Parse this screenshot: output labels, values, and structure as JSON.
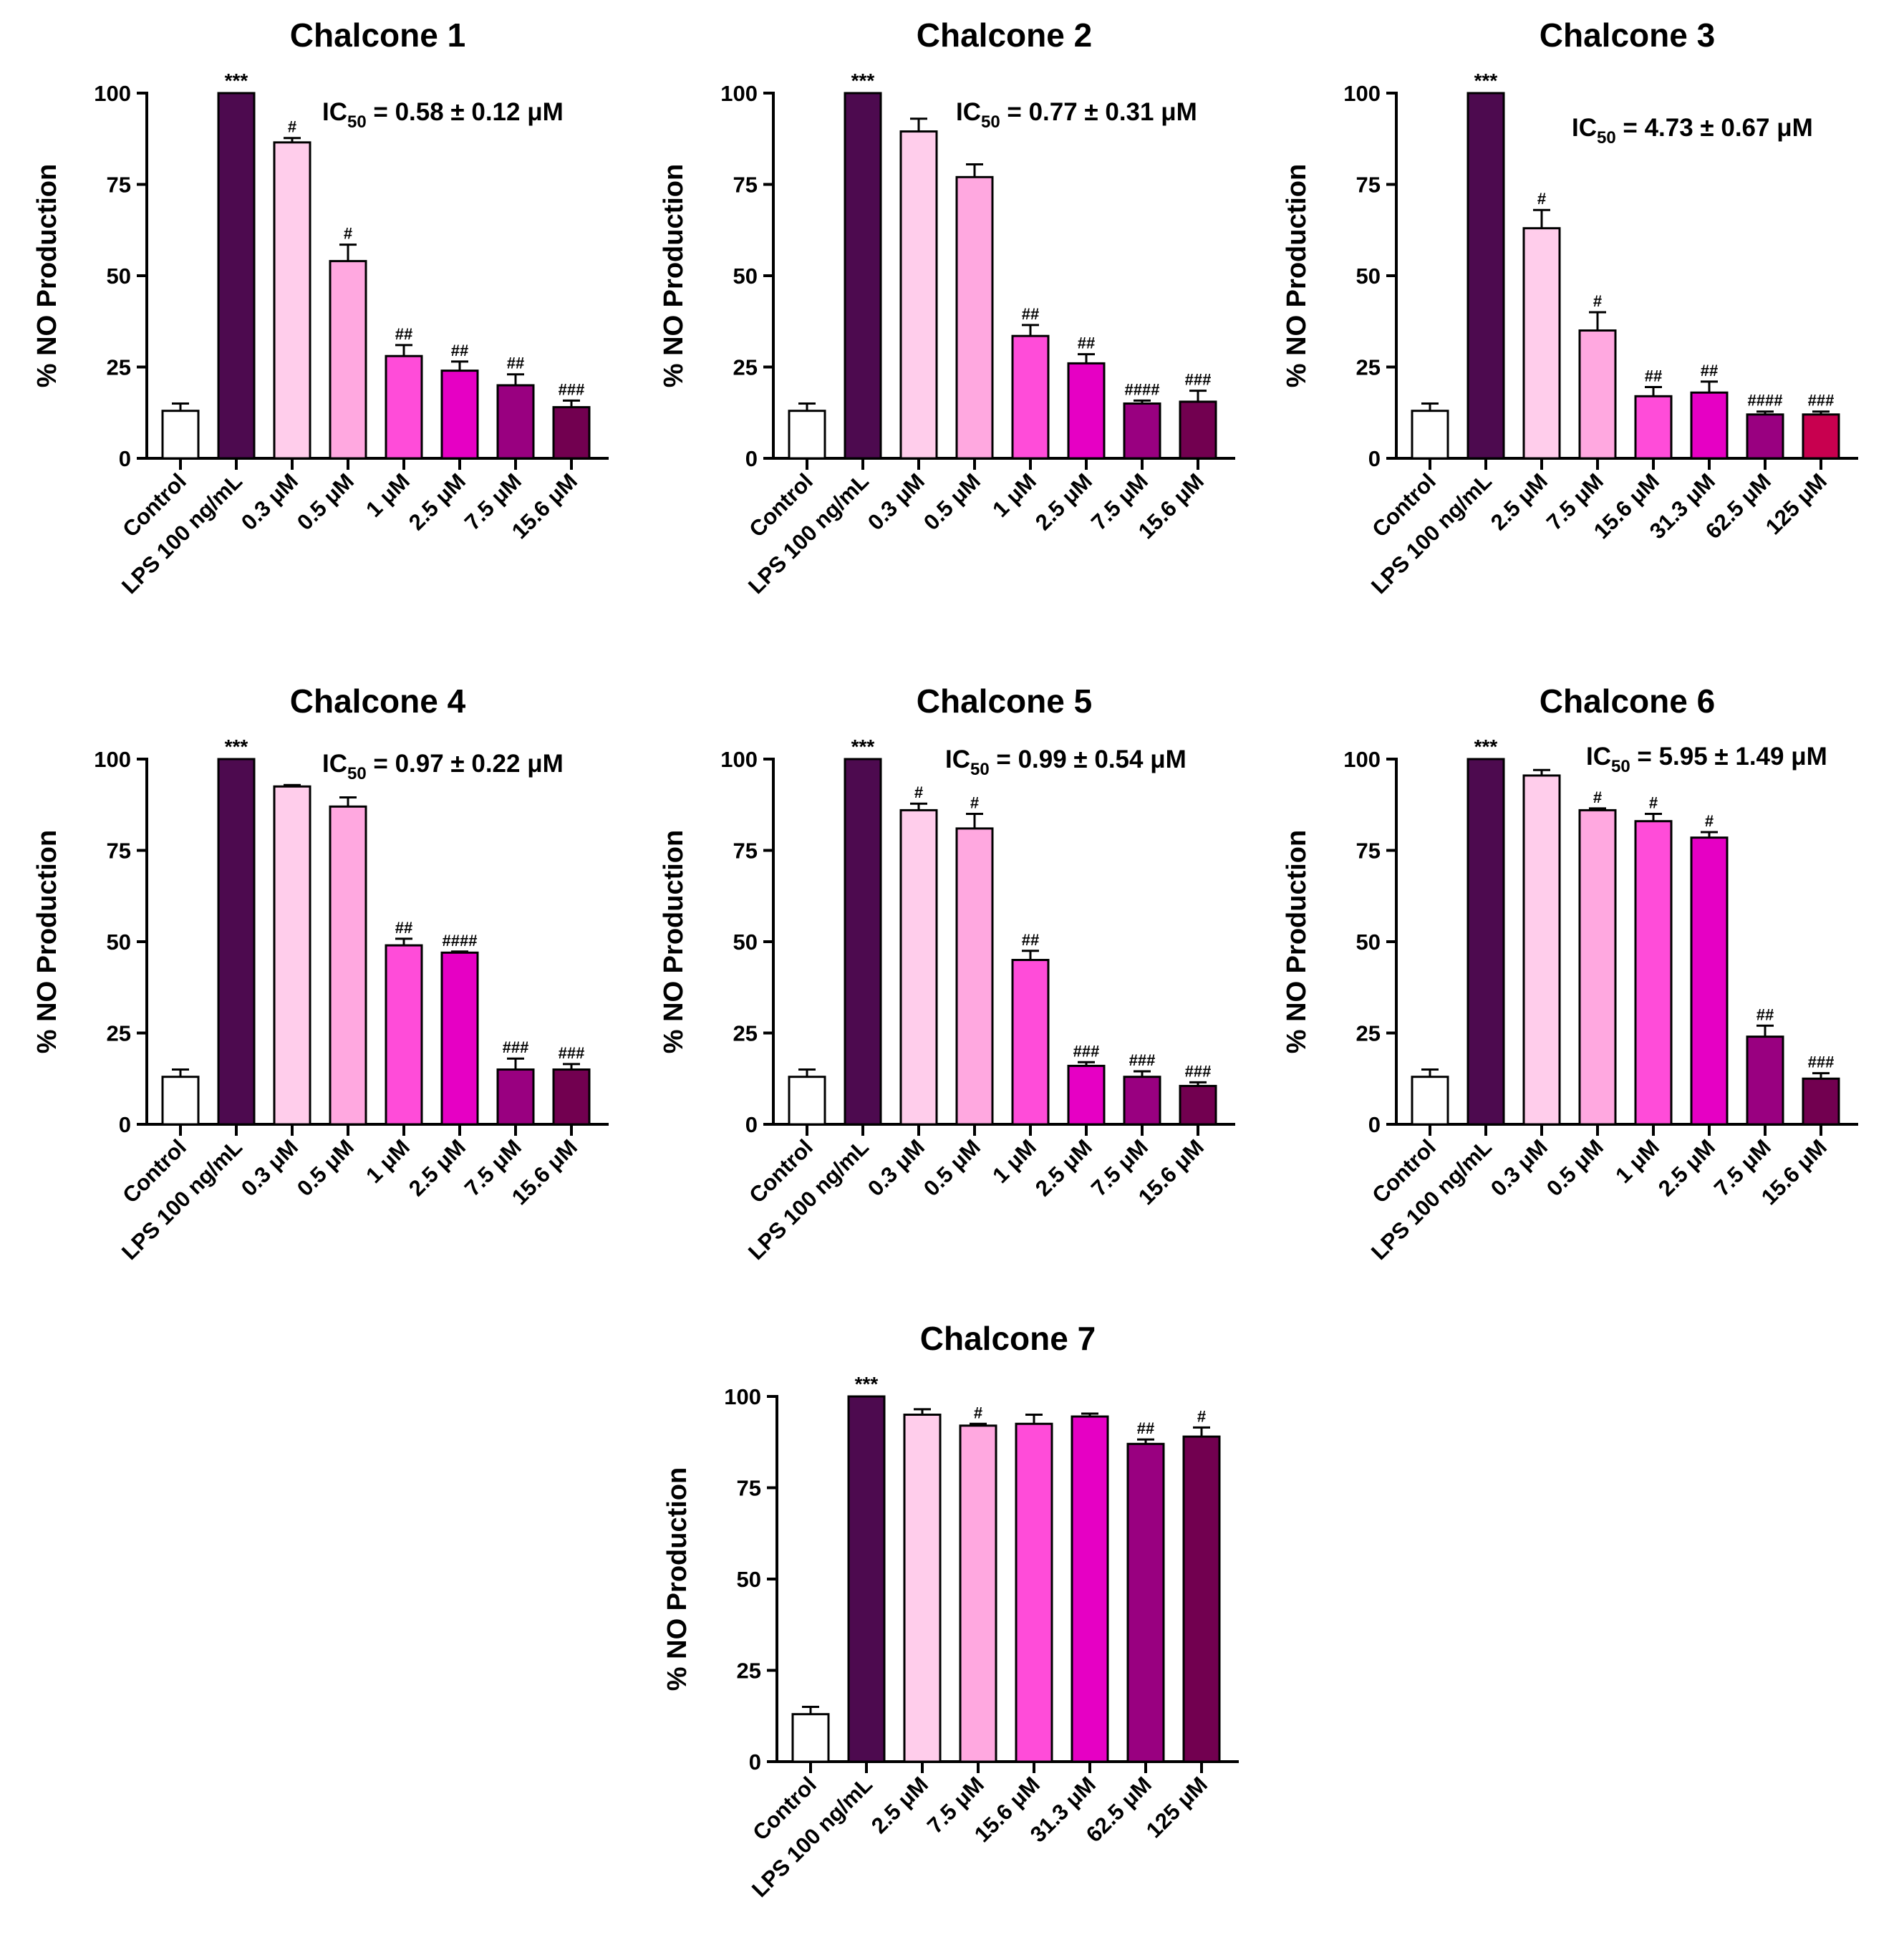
{
  "chart_data": [
    {
      "type": "bar",
      "title": "Chalcone 1",
      "ylabel": "% NO Production",
      "xlabel": "",
      "ylim": [
        0,
        100
      ],
      "yticks": [
        0,
        25,
        50,
        75,
        100
      ],
      "ic50_prefix": "IC",
      "ic50_sub": "50",
      "ic50_value": " = 0.58 ± 0.12 μM",
      "categories": [
        "Control",
        "LPS 100 ng/mL",
        "0.3 μM",
        "0.5 μM",
        "1 μM",
        "2.5 μM",
        "7.5 μM",
        "15.6 μM"
      ],
      "values": [
        13,
        100,
        86.5,
        54,
        28,
        24,
        20,
        14
      ],
      "errors": [
        2,
        0,
        1.2,
        4.5,
        3,
        2.5,
        3,
        1.8
      ],
      "significance": [
        "",
        "***",
        "#",
        "#",
        "##",
        "##",
        "##",
        "###"
      ],
      "colors": [
        "#ffffff",
        "#4d0a4f",
        "#ffcdeb",
        "#ffa8e0",
        "#ff4cd9",
        "#e600c4",
        "#990080",
        "#720050"
      ]
    },
    {
      "type": "bar",
      "title": "Chalcone 2",
      "ylabel": "% NO Production",
      "xlabel": "",
      "ylim": [
        0,
        100
      ],
      "yticks": [
        0,
        25,
        50,
        75,
        100
      ],
      "ic50_prefix": "IC",
      "ic50_sub": "50",
      "ic50_value": " = 0.77 ± 0.31 μM",
      "categories": [
        "Control",
        "LPS 100 ng/mL",
        "0.3 μM",
        "0.5 μM",
        "1 μM",
        "2.5 μM",
        "7.5 μM",
        "15.6 μM"
      ],
      "values": [
        13,
        100,
        89.5,
        77,
        33.5,
        26,
        15,
        15.5
      ],
      "errors": [
        2,
        0,
        3.5,
        3.5,
        3,
        2.5,
        0.8,
        3
      ],
      "significance": [
        "",
        "***",
        "",
        "",
        "##",
        "##",
        "####",
        "###"
      ],
      "colors": [
        "#ffffff",
        "#4d0a4f",
        "#ffcdeb",
        "#ffa8e0",
        "#ff4cd9",
        "#e600c4",
        "#990080",
        "#720050"
      ]
    },
    {
      "type": "bar",
      "title": "Chalcone 3",
      "ylabel": "% NO Production",
      "xlabel": "",
      "ylim": [
        0,
        100
      ],
      "yticks": [
        0,
        25,
        50,
        75,
        100
      ],
      "ic50_prefix": "IC",
      "ic50_sub": "50",
      "ic50_value": " = 4.73 ± 0.67 μM",
      "categories": [
        "Control",
        "LPS 100 ng/mL",
        "2.5 μM",
        "7.5 μM",
        "15.6 μM",
        "31.3 μM",
        "62.5 μM",
        "125 μM"
      ],
      "values": [
        13,
        100,
        63,
        35,
        17,
        18,
        12,
        12
      ],
      "errors": [
        2,
        0,
        5,
        5,
        2.5,
        3,
        0.8,
        0.8
      ],
      "significance": [
        "",
        "***",
        "#",
        "#",
        "##",
        "##",
        "####",
        "###"
      ],
      "colors": [
        "#ffffff",
        "#4d0a4f",
        "#ffcdeb",
        "#ffa8e0",
        "#ff4cd9",
        "#e600c4",
        "#990080",
        "#c8004f"
      ]
    },
    {
      "type": "bar",
      "title": "Chalcone 4",
      "ylabel": "% NO Production",
      "xlabel": "",
      "ylim": [
        0,
        100
      ],
      "yticks": [
        0,
        25,
        50,
        75,
        100
      ],
      "ic50_prefix": "IC",
      "ic50_sub": "50",
      "ic50_value": " = 0.97 ± 0.22 μM",
      "categories": [
        "Control",
        "LPS 100 ng/mL",
        "0.3 μM",
        "0.5 μM",
        "1 μM",
        "2.5 μM",
        "7.5 μM",
        "15.6 μM"
      ],
      "values": [
        13,
        100,
        92.5,
        87,
        49,
        47,
        15,
        15
      ],
      "errors": [
        2,
        0,
        0.4,
        2.5,
        1.8,
        0.3,
        3,
        1.5
      ],
      "significance": [
        "",
        "***",
        "",
        "",
        "##",
        "####",
        "###",
        "###"
      ],
      "colors": [
        "#ffffff",
        "#4d0a4f",
        "#ffcdeb",
        "#ffa8e0",
        "#ff4cd9",
        "#e600c4",
        "#990080",
        "#720050"
      ]
    },
    {
      "type": "bar",
      "title": "Chalcone 5",
      "ylabel": "% NO Production",
      "xlabel": "",
      "ylim": [
        0,
        100
      ],
      "yticks": [
        0,
        25,
        50,
        75,
        100
      ],
      "ic50_prefix": "IC",
      "ic50_sub": "50",
      "ic50_value": " = 0.99 ± 0.54 μM",
      "categories": [
        "Control",
        "LPS 100 ng/mL",
        "0.3 μM",
        "0.5 μM",
        "1 μM",
        "2.5 μM",
        "7.5 μM",
        "15.6 μM"
      ],
      "values": [
        13,
        100,
        86,
        81,
        45,
        16,
        13,
        10.5
      ],
      "errors": [
        2,
        0,
        1.8,
        4,
        2.5,
        1,
        1.5,
        1
      ],
      "significance": [
        "",
        "***",
        "#",
        "#",
        "##",
        "###",
        "###",
        "###"
      ],
      "colors": [
        "#ffffff",
        "#4d0a4f",
        "#ffcdeb",
        "#ffa8e0",
        "#ff4cd9",
        "#e600c4",
        "#990080",
        "#720050"
      ]
    },
    {
      "type": "bar",
      "title": "Chalcone 6",
      "ylabel": "% NO Production",
      "xlabel": "",
      "ylim": [
        0,
        100
      ],
      "yticks": [
        0,
        25,
        50,
        75,
        100
      ],
      "ic50_prefix": "IC",
      "ic50_sub": "50",
      "ic50_value": " = 5.95 ± 1.49 μM",
      "categories": [
        "Control",
        "LPS 100 ng/mL",
        "0.3 μM",
        "0.5 μM",
        "1 μM",
        "2.5 μM",
        "7.5 μM",
        "15.6 μM"
      ],
      "values": [
        13,
        100,
        95.5,
        86,
        83,
        78.5,
        24,
        12.5
      ],
      "errors": [
        2,
        0,
        1.5,
        0.5,
        2,
        1.5,
        3,
        1.5
      ],
      "significance": [
        "",
        "***",
        "",
        "#",
        "#",
        "#",
        "##",
        "###"
      ],
      "colors": [
        "#ffffff",
        "#4d0a4f",
        "#ffcdeb",
        "#ffa8e0",
        "#ff4cd9",
        "#e600c4",
        "#990080",
        "#720050"
      ]
    },
    {
      "type": "bar",
      "title": "Chalcone 7",
      "ylabel": "% NO Production",
      "xlabel": "",
      "ylim": [
        0,
        100
      ],
      "yticks": [
        0,
        25,
        50,
        75,
        100
      ],
      "ic50_prefix": "",
      "ic50_sub": "",
      "ic50_value": "",
      "categories": [
        "Control",
        "LPS 100 ng/mL",
        "2.5 μM",
        "7.5 μM",
        "15.6 μM",
        "31.3 μM",
        "62.5 μM",
        "125 μM"
      ],
      "values": [
        13,
        100,
        95,
        92,
        92.5,
        94.5,
        87,
        89
      ],
      "errors": [
        2,
        0,
        1.5,
        0.5,
        2.5,
        0.8,
        1.2,
        2.5
      ],
      "significance": [
        "",
        "***",
        "",
        "#",
        "",
        "",
        "##",
        "#"
      ],
      "colors": [
        "#ffffff",
        "#4d0a4f",
        "#ffcdeb",
        "#ffa8e0",
        "#ff4cd9",
        "#e600c4",
        "#990080",
        "#720050"
      ]
    }
  ]
}
